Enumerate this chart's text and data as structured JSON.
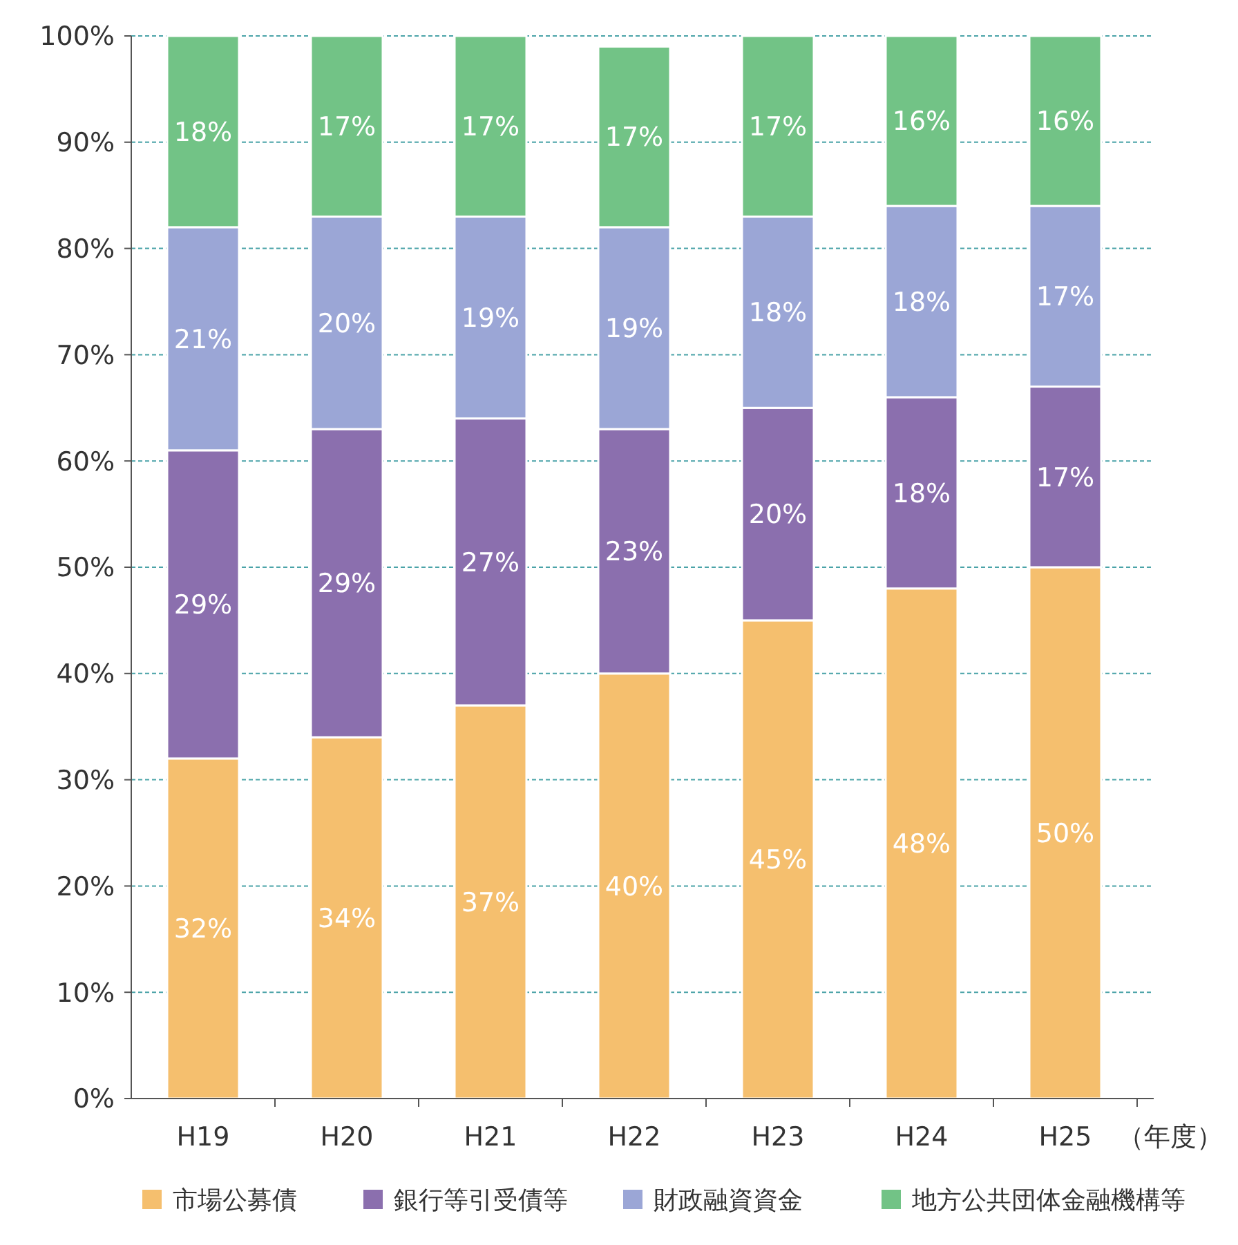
{
  "chart_data": {
    "type": "bar",
    "stacked": true,
    "categories": [
      "H19",
      "H20",
      "H21",
      "H22",
      "H23",
      "H24",
      "H25"
    ],
    "series": [
      {
        "name": "市場公募債",
        "color": "#f5bf6e",
        "values": [
          32,
          34,
          37,
          40,
          45,
          48,
          50
        ],
        "value_labels": [
          "32%",
          "34%",
          "37%",
          "40%",
          "45%",
          "48%",
          "50%"
        ]
      },
      {
        "name": "銀行等引受債等",
        "color": "#8b6fae",
        "values": [
          29,
          29,
          27,
          23,
          20,
          18,
          17
        ],
        "value_labels": [
          "29%",
          "29%",
          "27%",
          "23%",
          "20%",
          "18%",
          "17%"
        ]
      },
      {
        "name": "財政融資資金",
        "color": "#9ba6d6",
        "values": [
          21,
          20,
          19,
          19,
          18,
          18,
          17
        ],
        "value_labels": [
          "21%",
          "20%",
          "19%",
          "19%",
          "18%",
          "18%",
          "17%"
        ]
      },
      {
        "name": "地方公共団体金融機構等",
        "color": "#72c386",
        "values": [
          18,
          17,
          17,
          17,
          17,
          16,
          16
        ],
        "value_labels": [
          "18%",
          "17%",
          "17%",
          "17%",
          "17%",
          "16%",
          "16%"
        ]
      }
    ],
    "ylim": [
      0,
      100
    ],
    "yticks": [
      {
        "value": 0,
        "label": "0%"
      },
      {
        "value": 10,
        "label": "10%"
      },
      {
        "value": 20,
        "label": "20%"
      },
      {
        "value": 30,
        "label": "30%"
      },
      {
        "value": 40,
        "label": "40%"
      },
      {
        "value": 50,
        "label": "50%"
      },
      {
        "value": 60,
        "label": "60%"
      },
      {
        "value": 70,
        "label": "70%"
      },
      {
        "value": 80,
        "label": "80%"
      },
      {
        "value": 90,
        "label": "90%"
      },
      {
        "value": 100,
        "label": "100%"
      }
    ],
    "grid": "y",
    "legend": "bottom",
    "annotations": [
      "（年度）"
    ]
  }
}
